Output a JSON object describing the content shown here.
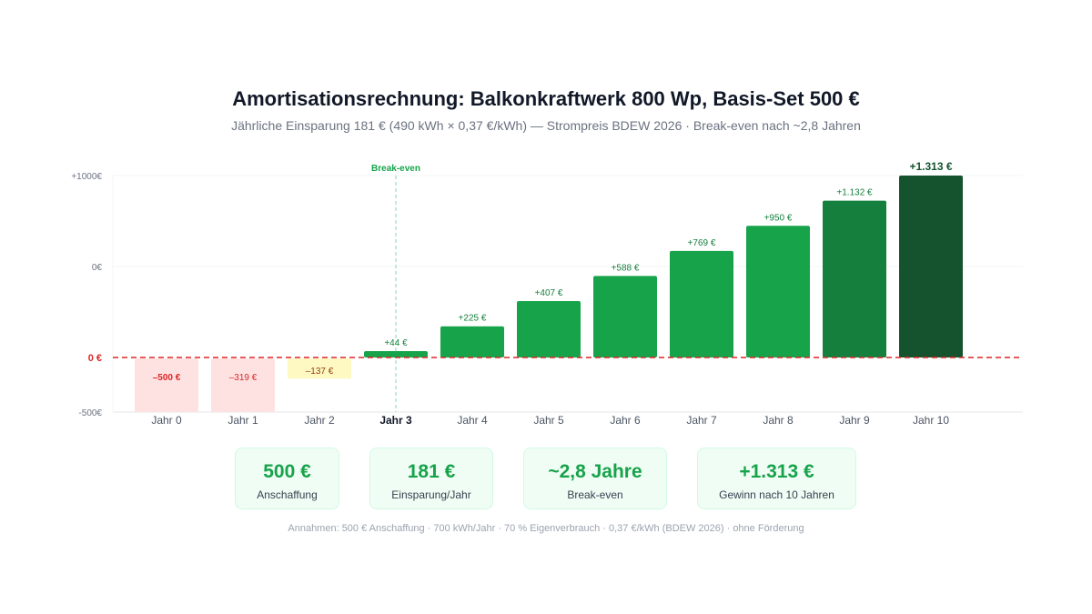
{
  "chart_data": {
    "type": "bar",
    "title": "Amortisationsrechnung: Balkonkraftwerk 800 Wp, Basis-Set 500 €",
    "subtitle": "Jährliche Einsparung 181 € (490 kWh × 0,37 €/kWh) — Strompreis BDEW 2026 · Break-even nach ~2,8 Jahren",
    "categories": [
      "Jahr 0",
      "Jahr 1",
      "Jahr 2",
      "Jahr 3",
      "Jahr 4",
      "Jahr 5",
      "Jahr 6",
      "Jahr 7",
      "Jahr 8",
      "Jahr 9",
      "Jahr 10"
    ],
    "values": [
      -500,
      -319,
      -137,
      44,
      225,
      407,
      588,
      769,
      950,
      1132,
      1313
    ],
    "value_labels": [
      "–500 €",
      "–319 €",
      "–137 €",
      "+44 €",
      "+225 €",
      "+407 €",
      "+588 €",
      "+769 €",
      "+950 €",
      "+1.132 €",
      "+1.313 €"
    ],
    "y_tick_labels": [
      "+1000€",
      "0€",
      "0 €",
      "-500€"
    ],
    "ylim": [
      -600,
      1313
    ],
    "zero_line_color": "#dc2626",
    "break_even": {
      "label": "Break-even",
      "category": "Jahr 3"
    },
    "colors": {
      "negative_fill": "#fee2e2",
      "negative_text": "#dc2626",
      "near_zero_fill": "#fef9c3",
      "near_zero_text": "#92400e",
      "positive_fill": "#16a34a",
      "positive_mid": "#15803d",
      "positive_dark": "#14532d",
      "positive_text": "#15803d"
    }
  },
  "cards": [
    {
      "value": "500 €",
      "label": "Anschaffung"
    },
    {
      "value": "181 €",
      "label": "Einsparung/Jahr"
    },
    {
      "value": "~2,8 Jahre",
      "label": "Break-even"
    },
    {
      "value": "+1.313 €",
      "label": "Gewinn nach 10 Jahren"
    }
  ],
  "footnote": "Annahmen: 500 € Anschaffung · 700 kWh/Jahr · 70 % Eigenverbrauch · 0,37 €/kWh (BDEW 2026) · ohne Förderung"
}
